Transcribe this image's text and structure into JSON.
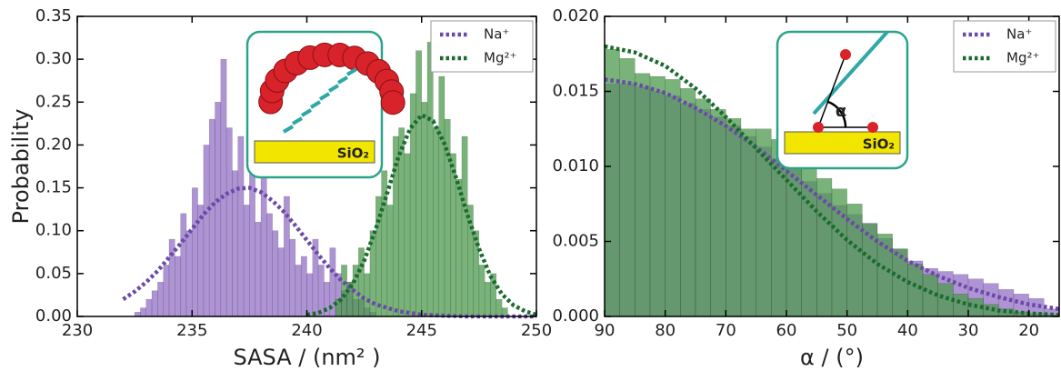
{
  "chart_data": [
    {
      "type": "histogram",
      "xlabel": "SASA / (nm² )",
      "ylabel": "Probability",
      "xlim": [
        230,
        250
      ],
      "xticks": [
        230,
        235,
        240,
        245,
        250
      ],
      "ylim": [
        0,
        0.35
      ],
      "yticks": [
        {
          "value": 0,
          "label": "0.00"
        },
        0.05,
        {
          "value": 0.1,
          "label": "0.10"
        },
        0.15,
        {
          "value": 0.2,
          "label": "0.20"
        },
        0.25,
        {
          "value": 0.3,
          "label": "0.30"
        },
        0.35
      ],
      "legend": "upper right",
      "annotations": [
        "SiO₂"
      ],
      "series": [
        {
          "name": "Na⁺",
          "color": "#9370c6",
          "fit_color": "#6a4aa8",
          "bins": [
            232.5,
            232.75,
            233,
            233.25,
            233.5,
            233.75,
            234,
            234.25,
            234.5,
            234.75,
            235,
            235.25,
            235.5,
            235.75,
            236,
            236.25,
            236.5,
            236.75,
            237,
            237.25,
            237.5,
            237.75,
            238,
            238.25,
            238.5,
            238.75,
            239,
            239.25,
            239.5,
            239.75,
            240,
            240.25,
            240.5,
            240.75,
            241,
            241.25,
            241.5,
            241.75,
            242,
            242.25,
            242.5,
            242.75,
            243
          ],
          "values": [
            0.005,
            0.01,
            0.02,
            0.03,
            0.04,
            0.06,
            0.09,
            0.07,
            0.12,
            0.1,
            0.15,
            0.13,
            0.2,
            0.23,
            0.25,
            0.3,
            0.22,
            0.17,
            0.21,
            0.13,
            0.18,
            0.11,
            0.17,
            0.12,
            0.1,
            0.08,
            0.14,
            0.09,
            0.06,
            0.07,
            0.05,
            0.09,
            0.06,
            0.04,
            0.08,
            0.05,
            0.03,
            0.04,
            0.02,
            0.02,
            0.01,
            0.005
          ],
          "fit_x": [
            232,
            232.5,
            233,
            233.5,
            234,
            234.5,
            235,
            235.5,
            236,
            236.5,
            237,
            237.5,
            238,
            238.5,
            239,
            239.5,
            240,
            240.5,
            241,
            241.5,
            242,
            242.5,
            243,
            244,
            245,
            246,
            247,
            248,
            249,
            250
          ],
          "fit_values": [
            0.02,
            0.029,
            0.04,
            0.053,
            0.069,
            0.085,
            0.102,
            0.119,
            0.133,
            0.143,
            0.149,
            0.15,
            0.145,
            0.135,
            0.122,
            0.106,
            0.089,
            0.072,
            0.056,
            0.042,
            0.031,
            0.021,
            0.014,
            0.006,
            0.002,
            0.001,
            0,
            0,
            0,
            0
          ]
        },
        {
          "name": "Mg²⁺",
          "color": "#4c9a4c",
          "fit_color": "#1b6b30",
          "bins": [
            241.25,
            241.5,
            241.75,
            242,
            242.25,
            242.5,
            242.75,
            243,
            243.25,
            243.5,
            243.75,
            244,
            244.25,
            244.5,
            244.75,
            245,
            245.25,
            245.5,
            245.75,
            246,
            246.25,
            246.5,
            246.75,
            247,
            247.25,
            247.5,
            247.75,
            248,
            248.25,
            248.5,
            248.75
          ],
          "values": [
            0.02,
            0.06,
            0.04,
            0.06,
            0.08,
            0.05,
            0.1,
            0.14,
            0.17,
            0.13,
            0.21,
            0.22,
            0.19,
            0.26,
            0.31,
            0.25,
            0.32,
            0.22,
            0.28,
            0.23,
            0.19,
            0.16,
            0.21,
            0.13,
            0.1,
            0.06,
            0.04,
            0.05,
            0.02,
            0.01
          ],
          "fit_x": [
            240,
            240.5,
            241,
            241.5,
            242,
            242.5,
            243,
            243.5,
            244,
            244.5,
            245,
            245.5,
            246,
            246.5,
            247,
            247.5,
            248,
            248.5,
            249,
            249.5,
            250
          ],
          "fit_values": [
            0.002,
            0.004,
            0.01,
            0.02,
            0.038,
            0.065,
            0.102,
            0.144,
            0.187,
            0.219,
            0.235,
            0.228,
            0.201,
            0.162,
            0.118,
            0.079,
            0.047,
            0.026,
            0.013,
            0.006,
            0.002
          ]
        }
      ]
    },
    {
      "type": "histogram",
      "xlabel": "α / (°)",
      "xlim": [
        90,
        15
      ],
      "xticks": [
        90,
        80,
        70,
        60,
        50,
        40,
        30,
        20
      ],
      "ylim": [
        0,
        0.02
      ],
      "yticks": [
        {
          "value": 0,
          "label": "0.000"
        },
        0.005,
        {
          "value": 0.01,
          "label": "0.010"
        },
        0.015,
        {
          "value": 0.02,
          "label": "0.020"
        }
      ],
      "legend": "upper right",
      "annotations": [
        "SiO₂",
        "α"
      ],
      "series": [
        {
          "name": "Na⁺",
          "color": "#9370c6",
          "fit_color": "#6a4aa8",
          "bins": [
            90,
            87.5,
            85,
            82.5,
            80,
            77.5,
            75,
            72.5,
            70,
            67.5,
            65,
            62.5,
            60,
            57.5,
            55,
            52.5,
            50,
            47.5,
            45,
            42.5,
            40,
            37.5,
            35,
            32.5,
            30,
            27.5,
            25,
            22.5,
            20,
            17.5,
            15
          ],
          "values": [
            0.0155,
            0.0155,
            0.0153,
            0.015,
            0.0147,
            0.0142,
            0.0138,
            0.0133,
            0.0127,
            0.012,
            0.0113,
            0.0105,
            0.0098,
            0.009,
            0.0082,
            0.0074,
            0.0068,
            0.0062,
            0.0052,
            0.0045,
            0.0037,
            0.0032,
            0.003,
            0.0028,
            0.0025,
            0.0022,
            0.0018,
            0.0015,
            0.0012,
            0.0005
          ],
          "fit_x": [
            90,
            85,
            80,
            75,
            70,
            65,
            60,
            55,
            50,
            45,
            40,
            35,
            30,
            25,
            20,
            15
          ],
          "fit_values": [
            0.0158,
            0.0155,
            0.0149,
            0.0139,
            0.0127,
            0.0113,
            0.0097,
            0.0081,
            0.0065,
            0.005,
            0.0037,
            0.0027,
            0.0019,
            0.0013,
            0.0008,
            0.0005
          ]
        },
        {
          "name": "Mg²⁺",
          "color": "#4c9a4c",
          "fit_color": "#1b6b30",
          "bins": [
            90,
            87.5,
            85,
            82.5,
            80,
            77.5,
            75,
            72.5,
            70,
            67.5,
            65,
            62.5,
            60,
            57.5,
            55,
            52.5,
            50,
            47.5,
            45,
            42.5,
            40,
            37.5,
            35,
            32.5,
            30,
            27.5,
            25,
            22.5,
            20,
            17.5,
            15
          ],
          "values": [
            0.0178,
            0.0172,
            0.0162,
            0.016,
            0.0158,
            0.0152,
            0.0145,
            0.0138,
            0.0132,
            0.0125,
            0.0125,
            0.0118,
            0.0115,
            0.0102,
            0.0092,
            0.0085,
            0.0075,
            0.0062,
            0.0055,
            0.0045,
            0.0035,
            0.0028,
            0.0022,
            0.0015,
            0.0012,
            0.0008,
            0.0005,
            0.0003,
            0.0002,
            0.0001
          ],
          "fit_x": [
            90,
            85,
            80,
            75,
            70,
            65,
            60,
            55,
            50,
            45,
            40,
            35,
            30,
            25,
            20,
            15
          ],
          "fit_values": [
            0.018,
            0.0176,
            0.0167,
            0.0152,
            0.0133,
            0.0112,
            0.0091,
            0.007,
            0.0051,
            0.0035,
            0.0023,
            0.0014,
            0.0008,
            0.0004,
            0.0002,
            0.0001
          ]
        }
      ]
    }
  ]
}
